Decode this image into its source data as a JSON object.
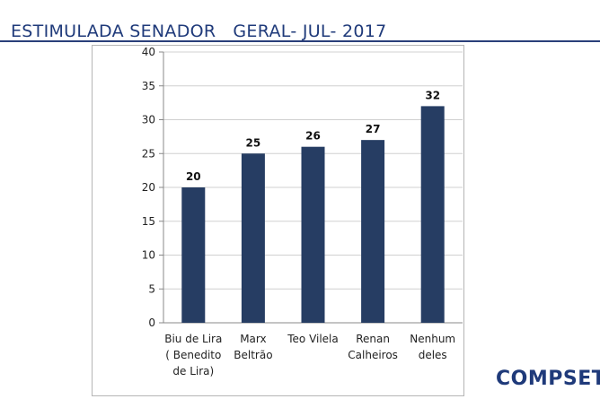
{
  "header": {
    "title": "ESTIMULADA SENADOR   GERAL- JUL- 2017"
  },
  "brand": "COMPSET",
  "chart_data": {
    "type": "bar",
    "categories": [
      [
        "Biu de Lira",
        "( Benedito",
        "de Lira)"
      ],
      [
        "Marx",
        "Beltrão"
      ],
      [
        "Teo Vilela"
      ],
      [
        "Renan",
        "Calheiros"
      ],
      [
        "Nenhum",
        "deles"
      ]
    ],
    "values": [
      20,
      25,
      26,
      27,
      32
    ],
    "data_labels": [
      "20",
      "25",
      "26",
      "27",
      "32"
    ],
    "ylim": [
      0,
      40
    ],
    "yticks": [
      0,
      5,
      10,
      15,
      20,
      25,
      30,
      35,
      40
    ],
    "grid": true,
    "bar_color": "#263d63",
    "grid_color": "#d0d0d0"
  }
}
